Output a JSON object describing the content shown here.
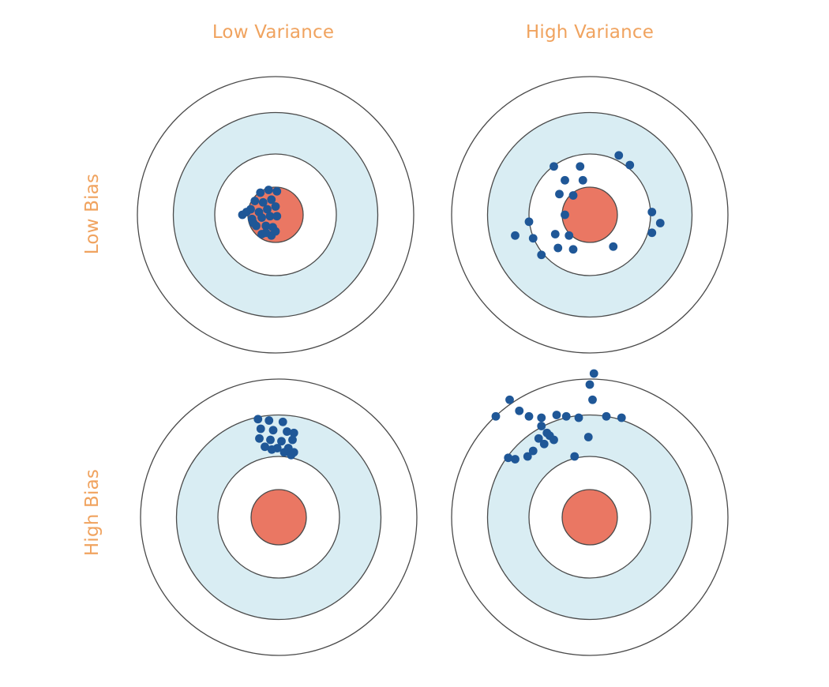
{
  "columns": {
    "low_variance": "Low Variance",
    "high_variance": "High Variance"
  },
  "rows": {
    "low_bias": "Low Bias",
    "high_bias": "High Bias"
  },
  "colors": {
    "label": "#f0a35f",
    "ring_fill_light": "#d9edf3",
    "ring_fill_white": "#ffffff",
    "ring_stroke": "#4a4a4a",
    "bullseye": "#ea7763",
    "dot": "#1f5797"
  },
  "targets": [
    {
      "name": "low-bias-low-variance",
      "shots": [
        [
          -0.11,
          -0.16
        ],
        [
          -0.05,
          -0.18
        ],
        [
          0.01,
          -0.17
        ],
        [
          -0.15,
          -0.1
        ],
        [
          -0.09,
          -0.09
        ],
        [
          -0.03,
          -0.11
        ],
        [
          -0.18,
          -0.04
        ],
        [
          -0.12,
          -0.02
        ],
        [
          -0.06,
          -0.04
        ],
        [
          0.0,
          -0.06
        ],
        [
          -0.24,
          0.0
        ],
        [
          -0.17,
          0.03
        ],
        [
          -0.1,
          0.02
        ],
        [
          -0.04,
          0.01
        ],
        [
          0.01,
          0.01
        ],
        [
          -0.14,
          0.08
        ],
        [
          -0.07,
          0.08
        ],
        [
          -0.02,
          0.09
        ],
        [
          -0.1,
          0.14
        ],
        [
          -0.03,
          0.15
        ],
        [
          -0.16,
          0.06
        ],
        [
          -0.21,
          -0.02
        ],
        [
          -0.07,
          0.13
        ],
        [
          0.0,
          0.12
        ]
      ]
    },
    {
      "name": "low-bias-high-variance",
      "shots": [
        [
          -0.26,
          -0.35
        ],
        [
          -0.18,
          -0.25
        ],
        [
          -0.07,
          -0.35
        ],
        [
          -0.05,
          -0.25
        ],
        [
          0.21,
          -0.43
        ],
        [
          0.29,
          -0.36
        ],
        [
          -0.22,
          -0.15
        ],
        [
          -0.12,
          -0.14
        ],
        [
          -0.18,
          0.0
        ],
        [
          0.45,
          -0.02
        ],
        [
          0.51,
          0.06
        ],
        [
          0.45,
          0.13
        ],
        [
          -0.44,
          0.05
        ],
        [
          -0.54,
          0.15
        ],
        [
          -0.41,
          0.17
        ],
        [
          -0.25,
          0.14
        ],
        [
          -0.15,
          0.15
        ],
        [
          -0.23,
          0.24
        ],
        [
          -0.12,
          0.25
        ],
        [
          -0.35,
          0.29
        ],
        [
          0.17,
          0.23
        ]
      ]
    },
    {
      "name": "high-bias-low-variance",
      "shots": [
        [
          -0.15,
          -0.71
        ],
        [
          -0.07,
          -0.7
        ],
        [
          0.03,
          -0.69
        ],
        [
          -0.13,
          -0.64
        ],
        [
          -0.04,
          -0.63
        ],
        [
          0.06,
          -0.62
        ],
        [
          0.11,
          -0.61
        ],
        [
          -0.14,
          -0.57
        ],
        [
          -0.06,
          -0.56
        ],
        [
          0.02,
          -0.55
        ],
        [
          0.1,
          -0.56
        ],
        [
          -0.1,
          -0.51
        ],
        [
          -0.01,
          -0.5
        ],
        [
          0.07,
          -0.5
        ],
        [
          0.11,
          -0.47
        ],
        [
          -0.05,
          -0.49
        ],
        [
          0.04,
          -0.47
        ],
        [
          0.09,
          -0.45
        ]
      ]
    },
    {
      "name": "high-bias-high-variance",
      "shots": [
        [
          0.03,
          -1.04
        ],
        [
          0.0,
          -0.96
        ],
        [
          0.02,
          -0.85
        ],
        [
          -0.58,
          -0.85
        ],
        [
          -0.51,
          -0.77
        ],
        [
          -0.68,
          -0.73
        ],
        [
          -0.44,
          -0.73
        ],
        [
          -0.35,
          -0.72
        ],
        [
          -0.17,
          -0.73
        ],
        [
          -0.35,
          -0.66
        ],
        [
          -0.24,
          -0.74
        ],
        [
          -0.08,
          -0.72
        ],
        [
          0.12,
          -0.73
        ],
        [
          0.23,
          -0.72
        ],
        [
          -0.31,
          -0.61
        ],
        [
          -0.37,
          -0.57
        ],
        [
          -0.29,
          -0.59
        ],
        [
          -0.26,
          -0.56
        ],
        [
          -0.33,
          -0.53
        ],
        [
          -0.41,
          -0.48
        ],
        [
          -0.45,
          -0.44
        ],
        [
          -0.59,
          -0.43
        ],
        [
          -0.54,
          -0.42
        ],
        [
          -0.01,
          -0.58
        ],
        [
          -0.11,
          -0.44
        ]
      ]
    }
  ]
}
